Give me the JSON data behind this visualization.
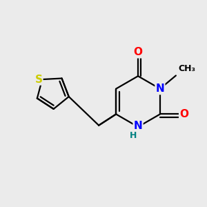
{
  "bg_color": "#ebebeb",
  "bond_color": "#000000",
  "bond_width": 1.6,
  "atom_colors": {
    "O": "#ff0000",
    "N": "#0000ff",
    "S": "#cccc00",
    "C": "#000000",
    "H": "#008080"
  },
  "font_size": 11,
  "small_font_size": 9
}
